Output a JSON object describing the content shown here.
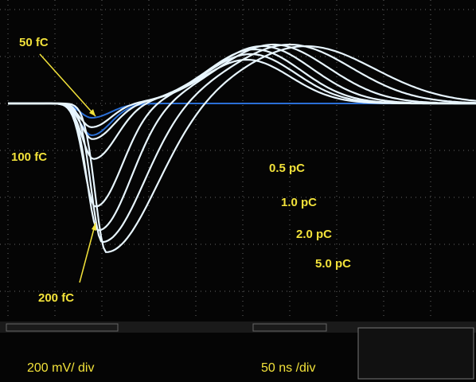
{
  "annotations": [
    "50 fC",
    "100 fC",
    "200 fC",
    "0.5 pC",
    "1.0 pC",
    "2.0 pC",
    "5.0 pC"
  ],
  "scale": {
    "vertical": "200 mV/ div",
    "horizontal": "50 ns /div"
  }
}
